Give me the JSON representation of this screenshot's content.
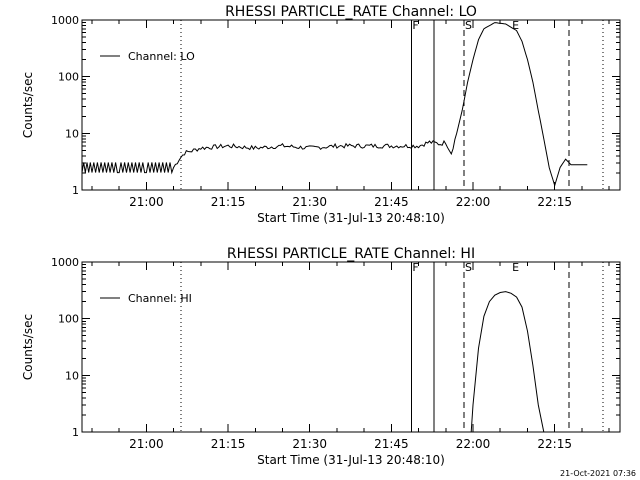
{
  "footer": {
    "timestamp": "21-Oct-2021 07:36"
  },
  "chart_data": [
    {
      "type": "line",
      "title": "RHESSI PARTICLE_RATE Channel: LO",
      "xlabel": "Start Time (31-Jul-13 20:48:10)",
      "ylabel": "Counts/sec",
      "y_scale": "log",
      "ylim": [
        1,
        1000
      ],
      "xlim": [
        "20:48:10",
        "22:27:00"
      ],
      "xticks": [
        "21:00",
        "21:15",
        "21:30",
        "21:45",
        "22:00",
        "22:15"
      ],
      "yticks": [
        "1",
        "10",
        "100",
        "1000"
      ],
      "legend": "upper-left",
      "series": [
        {
          "name": "Channel: LO",
          "x": [
            "20:48:10",
            "20:50:00",
            "20:55:00",
            "21:00:00",
            "21:05:00",
            "21:06:00",
            "21:07:00",
            "21:10:00",
            "21:15:00",
            "21:20:00",
            "21:25:00",
            "21:30:00",
            "21:35:00",
            "21:40:00",
            "21:45:00",
            "21:50:00",
            "21:52:00",
            "21:54:00",
            "21:55:00",
            "21:56:00",
            "21:57:00",
            "21:58:00",
            "21:59:00",
            "22:00:00",
            "22:01:00",
            "22:02:00",
            "22:04:00",
            "22:06:00",
            "22:08:00",
            "22:09:00",
            "22:10:00",
            "22:11:00",
            "22:12:00",
            "22:13:00",
            "22:14:00",
            "22:15:00",
            "22:16:00",
            "22:17:00",
            "22:18:00",
            "22:19:00",
            "22:21:00"
          ],
          "values": [
            2.5,
            2.5,
            2.5,
            2.5,
            2.5,
            3.5,
            4.5,
            5.5,
            6,
            5.5,
            6,
            5.5,
            6,
            6,
            6,
            6,
            7,
            6.5,
            7,
            4.5,
            10,
            25,
            80,
            200,
            450,
            700,
            900,
            850,
            650,
            420,
            200,
            80,
            25,
            8,
            2.5,
            1.2,
            2.5,
            3.5,
            2.8,
            2.8,
            2.8
          ]
        }
      ]
    },
    {
      "type": "line",
      "title": "RHESSI PARTICLE_RATE Channel: HI",
      "xlabel": "Start Time (31-Jul-13 20:48:10)",
      "ylabel": "Counts/sec",
      "y_scale": "log",
      "ylim": [
        1,
        1000
      ],
      "xlim": [
        "20:48:10",
        "22:27:00"
      ],
      "xticks": [
        "21:00",
        "21:15",
        "21:30",
        "21:45",
        "22:00",
        "22:15"
      ],
      "yticks": [
        "1",
        "10",
        "100",
        "1000"
      ],
      "legend": "upper-left",
      "series": [
        {
          "name": "Channel: HI",
          "x": [
            "21:59:40",
            "22:00:00",
            "22:01:00",
            "22:02:00",
            "22:03:00",
            "22:04:00",
            "22:05:00",
            "22:06:00",
            "22:07:00",
            "22:08:00",
            "22:09:00",
            "22:10:00",
            "22:11:00",
            "22:12:00",
            "22:13:00"
          ],
          "values": [
            1,
            3,
            30,
            110,
            200,
            260,
            290,
            300,
            280,
            240,
            160,
            60,
            15,
            3,
            1
          ]
        }
      ]
    }
  ],
  "markers": [
    {
      "label": "",
      "time": "21:06:20",
      "style": "dotted"
    },
    {
      "label": "F",
      "time": "21:48:40",
      "style": "solid"
    },
    {
      "label": "",
      "time": "21:52:50",
      "style": "solid"
    },
    {
      "label": "S",
      "time": "21:58:20",
      "style": "dashed"
    },
    {
      "label": "E",
      "time": "22:07:00",
      "style": "none"
    },
    {
      "label": "",
      "time": "22:17:40",
      "style": "dashed"
    },
    {
      "label": "",
      "time": "22:23:50",
      "style": "dotted"
    }
  ]
}
